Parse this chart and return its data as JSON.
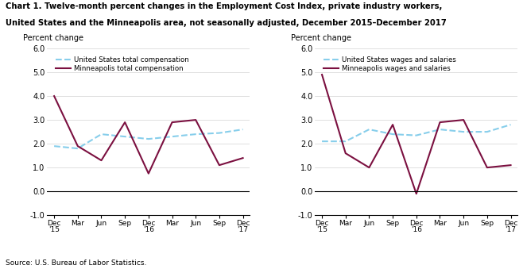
{
  "title_line1": "Chart 1. Twelve-month percent changes in the Employment Cost Index, private industry workers,",
  "title_line2": "United States and the Minneapolis area, not seasonally adjusted, December 2015–December 2017",
  "source": "Source: U.S. Bureau of Labor Statistics.",
  "ylabel": "Percent change",
  "x_labels": [
    "Dec\n'15",
    "Mar",
    "Jun",
    "Sep",
    "Dec\n'16",
    "Mar",
    "Jun",
    "Sep",
    "Dec\n'17"
  ],
  "ylim": [
    -1.0,
    6.0
  ],
  "yticks": [
    -1.0,
    0.0,
    1.0,
    2.0,
    3.0,
    4.0,
    5.0,
    6.0
  ],
  "left_chart": {
    "us_label": "United States total compensation",
    "mp_label": "Minneapolis total compensation",
    "us_data": [
      1.9,
      1.8,
      2.4,
      2.3,
      2.2,
      2.3,
      2.4,
      2.45,
      2.6
    ],
    "mp_data": [
      4.0,
      1.9,
      1.3,
      2.9,
      0.75,
      2.9,
      3.0,
      1.1,
      1.4
    ]
  },
  "right_chart": {
    "us_label": "United States wages and salaries",
    "mp_label": "Minneapolis wages and salaries",
    "us_data": [
      2.1,
      2.1,
      2.6,
      2.4,
      2.35,
      2.6,
      2.5,
      2.5,
      2.8
    ],
    "mp_data": [
      4.9,
      1.6,
      1.0,
      2.8,
      -0.1,
      2.9,
      3.0,
      1.0,
      1.1
    ]
  },
  "us_color": "#87CEEB",
  "mp_color": "#7B1040",
  "us_linestyle": "--",
  "mp_linestyle": "-",
  "line_width": 1.5
}
